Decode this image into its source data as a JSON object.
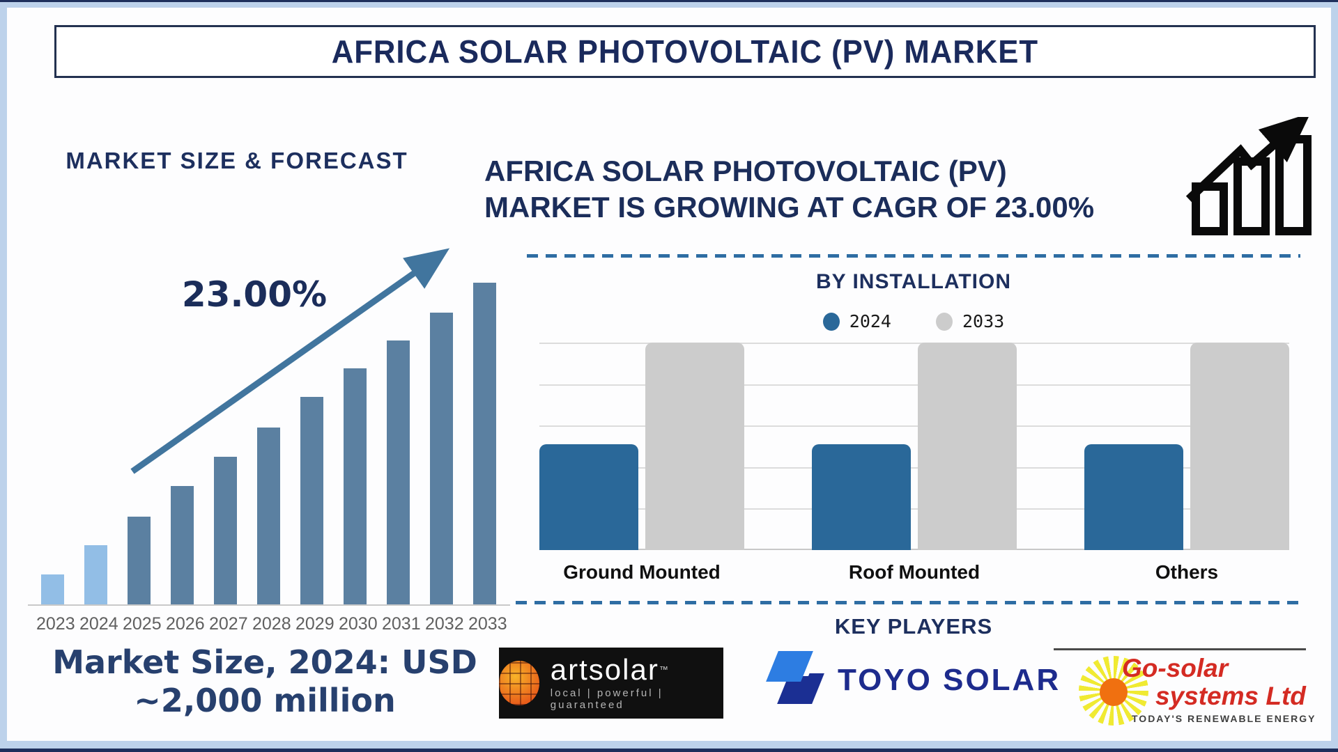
{
  "title_banner": {
    "text": "AFRICA SOLAR PHOTOVOLTAIC (PV) MARKET"
  },
  "left_panel": {
    "section_title": "MARKET SIZE & FORECAST",
    "cagr_label": "23.00%",
    "market_size_line1": "Market Size, 2024: USD",
    "market_size_line2": "~2,000 million"
  },
  "right_panel": {
    "headline_line1": "AFRICA SOLAR PHOTOVOLTAIC (PV)",
    "headline_line2": "MARKET IS GROWING AT CAGR OF 23.00%",
    "installation": {
      "section_title": "BY INSTALLATION"
    },
    "key_players": {
      "section_title": "KEY PLAYERS",
      "players": [
        {
          "name": "artsolar",
          "trademark": "™",
          "tagline": "local | powerful | guaranteed"
        },
        {
          "name": "TOYO SOLAR"
        },
        {
          "name_line1": "Go-solar",
          "name_line2": "systems Ltd",
          "tagline": "TODAY'S RENEWABLE ENERGY"
        }
      ]
    }
  },
  "colors": {
    "navy_text": "#1b2d5a",
    "frame_light_blue": "#bdd2eb",
    "dashed_divider": "#2e6da3",
    "forecast_bar_historical": "#92bee6",
    "forecast_bar_future": "#5b80a1",
    "installation_2024": "#2a6899",
    "installation_2033": "#cccccc"
  },
  "icons": {
    "growth_icon": "bar-chart-with-upward-zigzag-arrow",
    "trend_arrow_icon": "upward-diagonal-arrow",
    "artsolar_sun_icon": "orange-solar-panel-circle",
    "toyo_mark_icon": "two-blue-parallelograms",
    "gosolar_sun_icon": "yellow-sunburst-with-orange-core"
  },
  "chart_data": [
    {
      "type": "bar",
      "title": "MARKET SIZE & FORECAST",
      "categories": [
        "2023",
        "2024",
        "2025",
        "2026",
        "2027",
        "2028",
        "2029",
        "2030",
        "2031",
        "2032",
        "2033"
      ],
      "values": [
        9.3,
        18.4,
        27.3,
        36.9,
        45.8,
        54.9,
        64.4,
        73.3,
        82.0,
        90.7,
        100
      ],
      "values_note": "bar heights as percent of tallest (2033) bar; no y-axis values shown on chart; caption states 2024 = USD ~2,000 million",
      "annotation": "23.00%",
      "colors": {
        "historical": "#92bee6",
        "forecast": "#5b80a1"
      },
      "xlabel": "",
      "ylabel": "",
      "grid": false,
      "y_axis_labels_shown": false
    },
    {
      "type": "bar",
      "title": "BY INSTALLATION",
      "categories": [
        "Ground Mounted",
        "Roof Mounted",
        "Others"
      ],
      "series": [
        {
          "name": "2024",
          "color": "#2a6899",
          "values": [
            51,
            51,
            51
          ]
        },
        {
          "name": "2033",
          "color": "#cccccc",
          "values": [
            100,
            100,
            100
          ]
        }
      ],
      "values_note": "bar heights as percent of plot height; no y-axis values shown on chart",
      "legend_position": "top",
      "grid": true,
      "y_axis_labels_shown": false
    }
  ]
}
